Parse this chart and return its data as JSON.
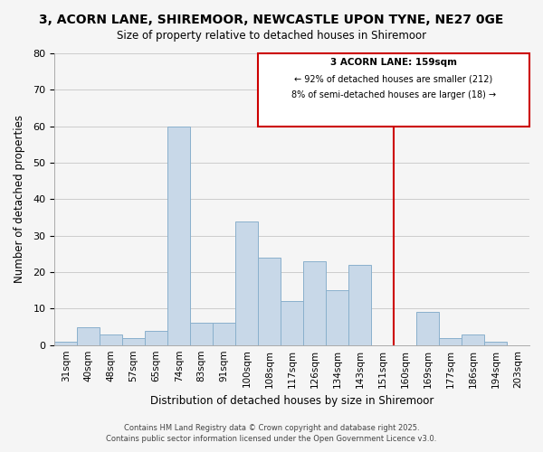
{
  "title_line1": "3, ACORN LANE, SHIREMOOR, NEWCASTLE UPON TYNE, NE27 0GE",
  "title_line2": "Size of property relative to detached houses in Shiremoor",
  "xlabel": "Distribution of detached houses by size in Shiremoor",
  "ylabel": "Number of detached properties",
  "bin_labels": [
    "31sqm",
    "40sqm",
    "48sqm",
    "57sqm",
    "65sqm",
    "74sqm",
    "83sqm",
    "91sqm",
    "100sqm",
    "108sqm",
    "117sqm",
    "126sqm",
    "134sqm",
    "143sqm",
    "151sqm",
    "160sqm",
    "169sqm",
    "177sqm",
    "186sqm",
    "194sqm",
    "203sqm"
  ],
  "bar_heights": [
    1,
    5,
    3,
    2,
    4,
    60,
    6,
    6,
    34,
    24,
    12,
    23,
    15,
    22,
    0,
    0,
    9,
    2,
    3,
    1,
    0
  ],
  "bar_color": "#c8d8e8",
  "bar_edge_color": "#8ab0cc",
  "grid_color": "#cccccc",
  "vline_x": 15,
  "vline_color": "#cc0000",
  "ylim": [
    0,
    80
  ],
  "yticks": [
    0,
    10,
    20,
    30,
    40,
    50,
    60,
    70,
    80
  ],
  "annotation_title": "3 ACORN LANE: 159sqm",
  "annotation_line1": "← 92% of detached houses are smaller (212)",
  "annotation_line2": "8% of semi-detached houses are larger (18) →",
  "annotation_box_color": "#ffffff",
  "annotation_box_edge": "#cc0000",
  "footer_line1": "Contains HM Land Registry data © Crown copyright and database right 2025.",
  "footer_line2": "Contains public sector information licensed under the Open Government Licence v3.0.",
  "background_color": "#f5f5f5"
}
